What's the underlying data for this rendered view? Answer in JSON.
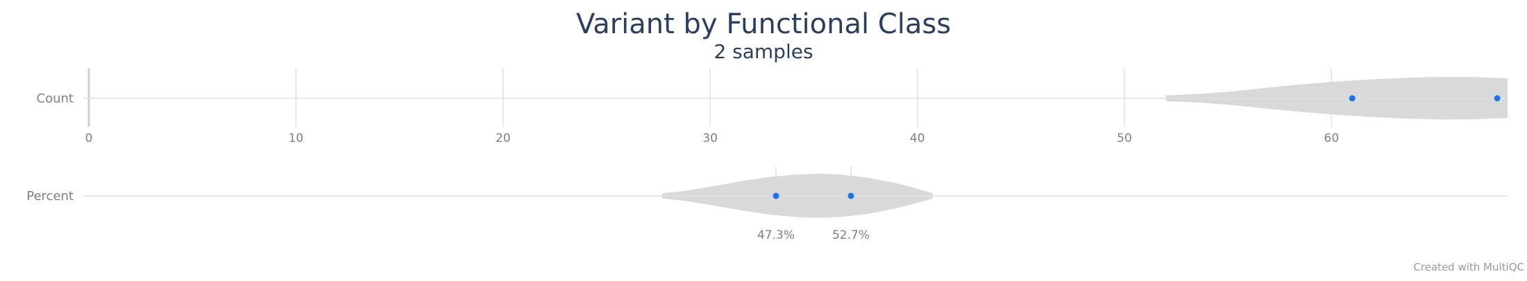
{
  "chart_data": {
    "type": "violin",
    "title": "Variant by Functional Class",
    "subtitle": "2 samples",
    "credit": "Created with MultiQC",
    "colors": {
      "point": "#1a73e8",
      "violin": "#d9d9d9",
      "grid": "#e0e0e0",
      "axis_text": "#7f7f7f",
      "title": "#2a3f5f"
    },
    "panels": [
      {
        "label": "Count",
        "xlim": [
          0,
          68.5
        ],
        "ticks": [
          0,
          10,
          20,
          30,
          40,
          50,
          60
        ],
        "tick_labels": [
          "0",
          "10",
          "20",
          "30",
          "40",
          "50",
          "60"
        ],
        "values": [
          61,
          68
        ],
        "violin_range": [
          52,
          68.5
        ]
      },
      {
        "label": "Percent",
        "xlim": [
          -2.2,
          100
        ],
        "ticks": [
          47.3,
          52.7
        ],
        "tick_labels": [
          "47.3%",
          "52.7%"
        ],
        "values": [
          47.3,
          52.7
        ],
        "violin_range": [
          39.1,
          58.6
        ]
      }
    ]
  }
}
